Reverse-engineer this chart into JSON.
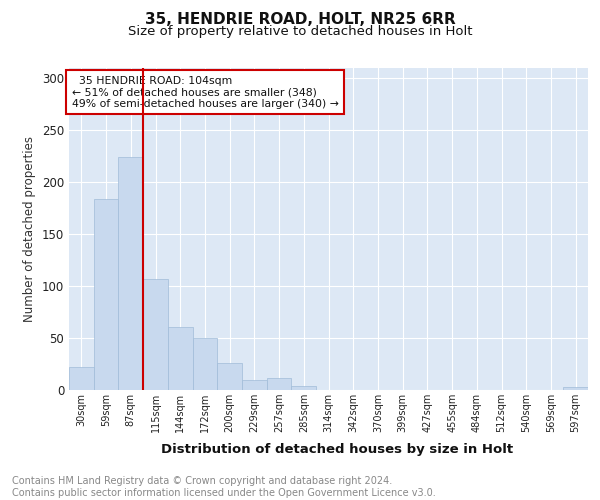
{
  "title1": "35, HENDRIE ROAD, HOLT, NR25 6RR",
  "title2": "Size of property relative to detached houses in Holt",
  "xlabel": "Distribution of detached houses by size in Holt",
  "ylabel": "Number of detached properties",
  "footnote": "Contains HM Land Registry data © Crown copyright and database right 2024.\nContains public sector information licensed under the Open Government Licence v3.0.",
  "bar_color": "#c8d9ee",
  "bar_edge_color": "#a0bcd8",
  "categories": [
    "30sqm",
    "59sqm",
    "87sqm",
    "115sqm",
    "144sqm",
    "172sqm",
    "200sqm",
    "229sqm",
    "257sqm",
    "285sqm",
    "314sqm",
    "342sqm",
    "370sqm",
    "399sqm",
    "427sqm",
    "455sqm",
    "484sqm",
    "512sqm",
    "540sqm",
    "569sqm",
    "597sqm"
  ],
  "values": [
    22,
    184,
    224,
    107,
    61,
    50,
    26,
    10,
    12,
    4,
    0,
    0,
    0,
    0,
    0,
    0,
    0,
    0,
    0,
    0,
    3
  ],
  "ylim": [
    0,
    310
  ],
  "yticks": [
    0,
    50,
    100,
    150,
    200,
    250,
    300
  ],
  "vline_x_idx": 2.5,
  "vline_color": "#cc0000",
  "annotation_text": "  35 HENDRIE ROAD: 104sqm\n← 51% of detached houses are smaller (348)\n49% of semi-detached houses are larger (340) →",
  "annotation_box_color": "#ffffff",
  "annotation_border_color": "#cc0000",
  "plot_bg_color": "#dde8f5",
  "grid_color": "#ffffff",
  "title1_fontsize": 11,
  "title2_fontsize": 9.5,
  "footnote_fontsize": 7,
  "xlabel_fontsize": 9.5,
  "ylabel_fontsize": 8.5
}
